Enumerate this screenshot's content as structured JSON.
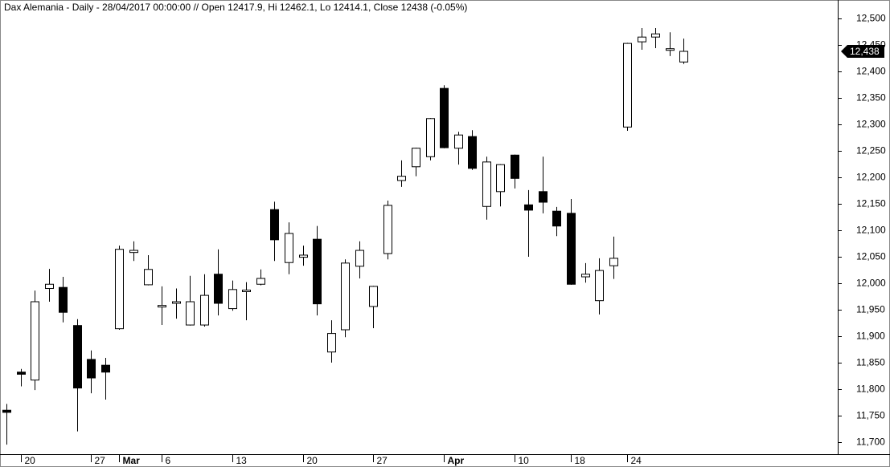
{
  "chart_data": {
    "type": "candlestick",
    "title": "Dax Alemania - Daily - 28/04/2017 00:00:00 // Open 12417.9, Hi 12462.1, Lo 12414.1, Close 12438 (-0.05%)",
    "categories": [
      null,
      "20",
      null,
      null,
      null,
      null,
      "27",
      null,
      "Mar",
      null,
      null,
      "6",
      null,
      null,
      null,
      null,
      "13",
      null,
      null,
      null,
      null,
      "20",
      null,
      null,
      null,
      null,
      "27",
      null,
      null,
      null,
      null,
      "Apr",
      null,
      null,
      null,
      null,
      "10",
      null,
      null,
      null,
      "18",
      null,
      null,
      null,
      "24",
      null,
      null,
      null,
      null
    ],
    "open": [
      11760,
      11832,
      11817,
      11990,
      11992,
      11920,
      11856,
      11845,
      11914,
      12058,
      11997,
      11955,
      11962,
      11921,
      11921,
      12017,
      11952,
      11985,
      11998,
      12139,
      12039,
      12049,
      12083,
      11870,
      11912,
      12032,
      11956,
      12056,
      12194,
      12220,
      12239,
      12368,
      12255,
      12277,
      12145,
      12173,
      12242,
      12148,
      12173,
      12136,
      12132,
      12012,
      11967,
      12033,
      12295,
      12456,
      12465,
      12440,
      12417.9
    ],
    "high": [
      11772,
      11838,
      11986,
      12027,
      12012,
      11932,
      11873,
      11859,
      12071,
      12079,
      12053,
      11994,
      11990,
      12014,
      12017,
      12064,
      12005,
      12002,
      12026,
      12154,
      12115,
      12071,
      12108,
      11930,
      12045,
      12079,
      11995,
      12156,
      12232,
      12256,
      12312,
      12374,
      12286,
      12289,
      12239,
      12225,
      12243,
      12176,
      12239,
      12144,
      12159,
      12038,
      12047,
      12088,
      12454,
      12482,
      12482,
      12474,
      12462.1
    ],
    "low": [
      11695,
      11805,
      11798,
      11965,
      11926,
      11720,
      11792,
      11780,
      11912,
      12042,
      11996,
      11921,
      11933,
      11920,
      11918,
      11939,
      11948,
      11930,
      11996,
      12042,
      12017,
      12033,
      11939,
      11850,
      11898,
      12009,
      11915,
      12045,
      12182,
      12202,
      12232,
      12255,
      12224,
      12214,
      12120,
      12145,
      12179,
      12050,
      12132,
      12089,
      11997,
      12001,
      11941,
      12008,
      12288,
      12441,
      12444,
      12429,
      12414.1
    ],
    "close": [
      11756,
      11828,
      11965,
      11998,
      11945,
      11802,
      11821,
      11832,
      12064,
      12062,
      12026,
      11958,
      11965,
      11965,
      11977,
      11962,
      11988,
      11987,
      12009,
      12082,
      12094,
      12053,
      11961,
      11905,
      12038,
      12062,
      11994,
      12147,
      12202,
      12255,
      12311,
      12256,
      12280,
      12217,
      12229,
      12224,
      12198,
      12138,
      12153,
      12108,
      11998,
      12017,
      12024,
      12047,
      12453,
      12465,
      12471,
      12443,
      12438
    ],
    "up_color": "#ffffff",
    "down_color": "#000000",
    "last_price": {
      "value": 12438,
      "label": "12,438"
    },
    "ylim": [
      11677,
      12535
    ],
    "yticks": [
      {
        "value": 11700,
        "label": "11,700"
      },
      {
        "value": 11750,
        "label": "11,750"
      },
      {
        "value": 11800,
        "label": "11,800"
      },
      {
        "value": 11850,
        "label": "11,850"
      },
      {
        "value": 11900,
        "label": "11,900"
      },
      {
        "value": 11950,
        "label": "11,950"
      },
      {
        "value": 12000,
        "label": "12,000"
      },
      {
        "value": 12050,
        "label": "12,050"
      },
      {
        "value": 12100,
        "label": "12,100"
      },
      {
        "value": 12150,
        "label": "12,150"
      },
      {
        "value": 12200,
        "label": "12,200"
      },
      {
        "value": 12250,
        "label": "12,250"
      },
      {
        "value": 12300,
        "label": "12,300"
      },
      {
        "value": 12350,
        "label": "12,350"
      },
      {
        "value": 12400,
        "label": "12,400"
      },
      {
        "value": 12450,
        "label": "12,450"
      },
      {
        "value": 12500,
        "label": "12,500"
      }
    ],
    "grid": false
  }
}
